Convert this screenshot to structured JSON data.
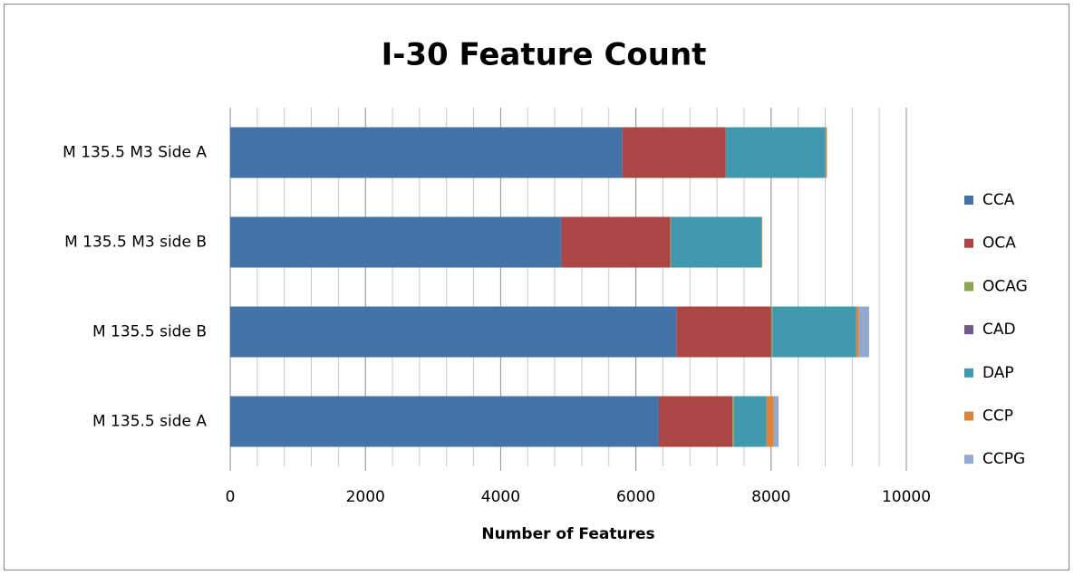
{
  "chart_data": {
    "type": "stacked-barh",
    "title": "I-30 Feature Count",
    "x_label": "Number of Features",
    "categories": [
      "M 135.5 M3 Side A",
      "M 135.5 M3 side B",
      "M 135.5 side B",
      "M 135.5 side A"
    ],
    "series": [
      {
        "name": "CCA",
        "color": "#4572a7",
        "values": [
          5800,
          4900,
          6600,
          6340
        ]
      },
      {
        "name": "OCA",
        "color": "#aa4643",
        "values": [
          1530,
          1610,
          1400,
          1090
        ]
      },
      {
        "name": "OCAG",
        "color": "#89a54e",
        "values": [
          0,
          10,
          20,
          20
        ]
      },
      {
        "name": "CAD",
        "color": "#71588f",
        "values": [
          0,
          0,
          0,
          0
        ]
      },
      {
        "name": "DAP",
        "color": "#4198af",
        "values": [
          1475,
          1340,
          1240,
          480
        ]
      },
      {
        "name": "CCP",
        "color": "#db843d",
        "values": [
          20,
          10,
          40,
          110
        ]
      },
      {
        "name": "CCPG",
        "color": "#93a9cf",
        "values": [
          0,
          0,
          150,
          70
        ]
      }
    ],
    "xlim": [
      0,
      10000
    ],
    "xticks": [
      0,
      2000,
      4000,
      6000,
      8000,
      10000
    ],
    "minor_xticks": [
      400,
      800,
      1200,
      1600,
      2400,
      2800,
      3200,
      3600,
      4400,
      4800,
      5200,
      5600,
      6400,
      6800,
      7200,
      7600,
      8400,
      8800,
      9200,
      9600
    ],
    "grid": true,
    "legend": "right"
  }
}
